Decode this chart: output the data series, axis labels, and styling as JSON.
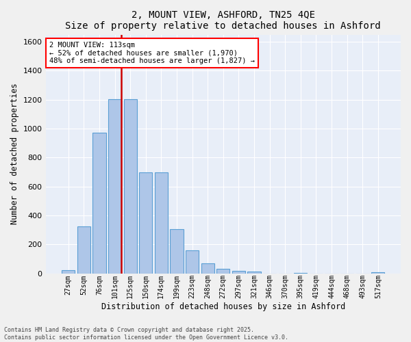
{
  "title": "2, MOUNT VIEW, ASHFORD, TN25 4QE",
  "subtitle": "Size of property relative to detached houses in Ashford",
  "xlabel": "Distribution of detached houses by size in Ashford",
  "ylabel": "Number of detached properties",
  "bar_color": "#aec6e8",
  "bar_edge_color": "#5a9fd4",
  "background_color": "#e8eef8",
  "grid_color": "#ffffff",
  "fig_bg_color": "#f0f0f0",
  "categories": [
    "27sqm",
    "52sqm",
    "76sqm",
    "101sqm",
    "125sqm",
    "150sqm",
    "174sqm",
    "199sqm",
    "223sqm",
    "248sqm",
    "272sqm",
    "297sqm",
    "321sqm",
    "346sqm",
    "370sqm",
    "395sqm",
    "419sqm",
    "444sqm",
    "468sqm",
    "493sqm",
    "517sqm"
  ],
  "values": [
    25,
    325,
    970,
    1205,
    1205,
    700,
    700,
    305,
    160,
    70,
    30,
    20,
    15,
    0,
    0,
    5,
    0,
    0,
    0,
    0,
    10
  ],
  "vline_color": "#cc0000",
  "annotation_text": "2 MOUNT VIEW: 113sqm\n← 52% of detached houses are smaller (1,970)\n48% of semi-detached houses are larger (1,827) →",
  "ylim": [
    0,
    1650
  ],
  "yticks": [
    0,
    200,
    400,
    600,
    800,
    1000,
    1200,
    1400,
    1600
  ],
  "footnote1": "Contains HM Land Registry data © Crown copyright and database right 2025.",
  "footnote2": "Contains public sector information licensed under the Open Government Licence v3.0."
}
